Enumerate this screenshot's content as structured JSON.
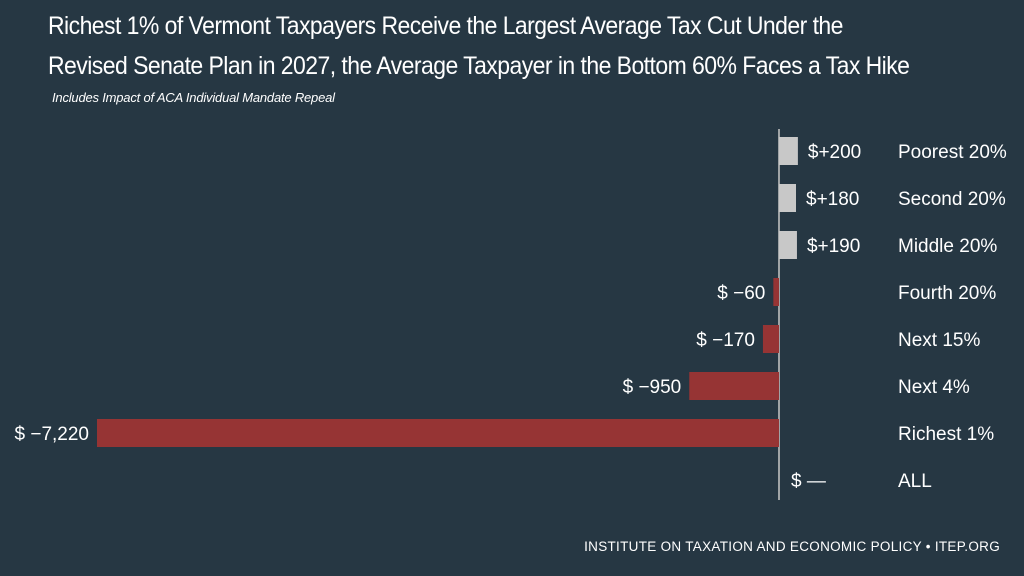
{
  "title_line1": "Richest 1% of Vermont Taxpayers Receive the Largest Average Tax Cut Under the",
  "title_line2": "Revised Senate Plan in 2027, the Average Taxpayer in the Bottom 60% Faces a Tax Hike",
  "subtitle": "Includes Impact of ACA Individual Mandate Repeal",
  "footer": "INSTITUTE ON TAXATION AND ECONOMIC POLICY • ITEP.ORG",
  "colors": {
    "background": "#263743",
    "positive_bar": "#c8c8c8",
    "negative_bar": "#963434",
    "axis": "#c8c8c8",
    "text": "#ffffff"
  },
  "chart_data": {
    "type": "bar",
    "orientation": "horizontal",
    "categories": [
      "Poorest 20%",
      "Second 20%",
      "Middle 20%",
      "Fourth 20%",
      "Next 15%",
      "Next 4%",
      "Richest 1%",
      "ALL"
    ],
    "values": [
      200,
      180,
      190,
      -60,
      -170,
      -950,
      -7220,
      0
    ],
    "value_labels": [
      "$+200",
      "$+180",
      "$+190",
      "$ −60",
      "$ −170",
      "$ −950",
      "$ −7,220",
      "$  —"
    ],
    "xlabel": "",
    "ylabel": "",
    "xlim": [
      -7220,
      200
    ],
    "grid": false,
    "legend": false
  }
}
